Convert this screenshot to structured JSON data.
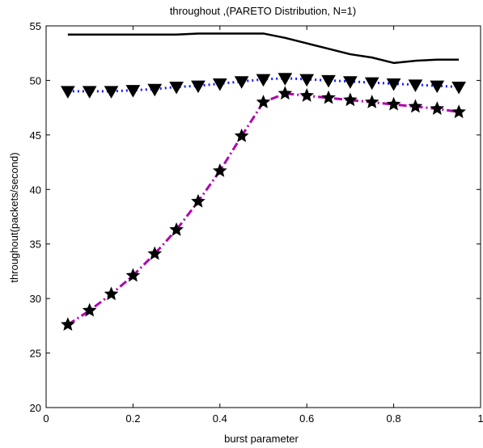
{
  "chart_data": {
    "type": "line",
    "title": "throughout ,(PARETO Distribution, N=1)",
    "xlabel": "burst parameter",
    "ylabel": "throughout(packets/second)",
    "xlim": [
      0,
      1
    ],
    "ylim": [
      20,
      55
    ],
    "xticks": [
      0,
      0.2,
      0.4,
      0.6,
      0.8,
      1
    ],
    "xtick_labels": [
      "0",
      "0.2",
      "0.4",
      "0.6",
      "0.8",
      "1"
    ],
    "yticks": [
      20,
      25,
      30,
      35,
      40,
      45,
      50,
      55
    ],
    "ytick_labels": [
      "20",
      "25",
      "30",
      "35",
      "40",
      "45",
      "50",
      "55"
    ],
    "grid": false,
    "x": [
      0.05,
      0.1,
      0.15,
      0.2,
      0.25,
      0.3,
      0.35,
      0.4,
      0.45,
      0.5,
      0.55,
      0.6,
      0.65,
      0.7,
      0.75,
      0.8,
      0.85,
      0.9,
      0.95
    ],
    "series": [
      {
        "style": "solid",
        "color": "#000000",
        "marker": "none",
        "values": [
          54.2,
          54.2,
          54.2,
          54.2,
          54.2,
          54.2,
          54.3,
          54.3,
          54.3,
          54.3,
          53.9,
          53.4,
          52.9,
          52.4,
          52.1,
          51.6,
          51.8,
          51.9,
          51.9
        ]
      },
      {
        "style": "dotted",
        "color": "#1a1aff",
        "marker": "triangle-down",
        "values": [
          49.0,
          49.0,
          49.0,
          49.1,
          49.2,
          49.4,
          49.5,
          49.7,
          49.9,
          50.1,
          50.2,
          50.1,
          50.0,
          49.9,
          49.8,
          49.7,
          49.6,
          49.5,
          49.4
        ]
      },
      {
        "style": "dashdot",
        "color": "#b000b0",
        "marker": "star",
        "values": [
          27.6,
          28.9,
          30.4,
          32.1,
          34.1,
          36.3,
          38.9,
          41.7,
          44.9,
          48.0,
          48.8,
          48.6,
          48.4,
          48.2,
          48.0,
          47.8,
          47.6,
          47.4,
          47.1
        ]
      }
    ]
  }
}
